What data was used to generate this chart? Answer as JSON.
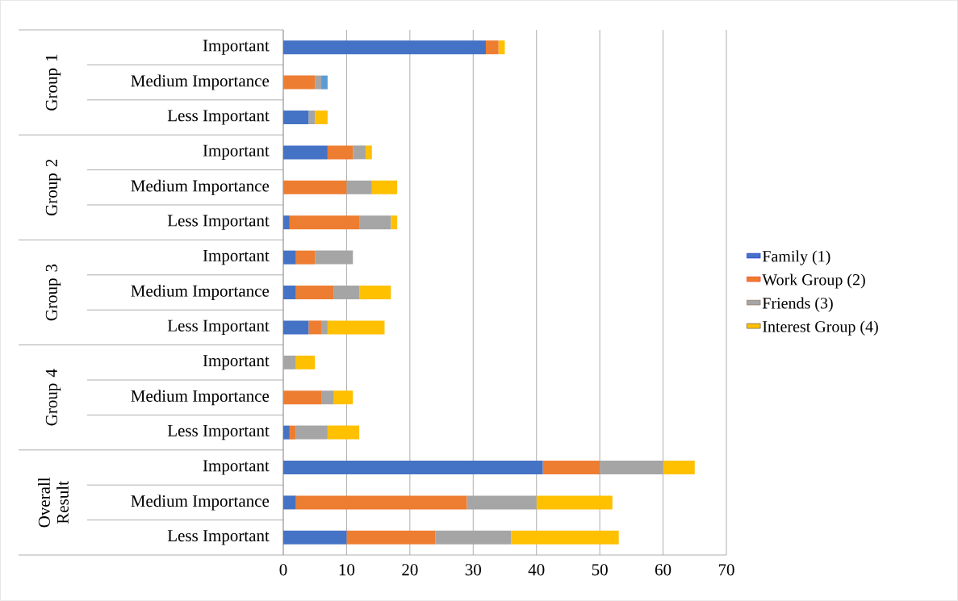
{
  "chart_data": {
    "type": "bar",
    "orientation": "horizontal",
    "stacked": true,
    "categories": [
      "Important",
      "Medium Importance",
      "Less Important",
      "Important",
      "Medium Importance",
      "Less Important",
      "Important",
      "Medium Importance",
      "Less Important",
      "Important",
      "Medium Importance",
      "Less Important",
      "Important",
      "Medium Importance",
      "Less Important"
    ],
    "series": [
      {
        "name": "Family (1)",
        "color": "#4472c4",
        "values": [
          32,
          0,
          4,
          7,
          0,
          1,
          2,
          2,
          4,
          0,
          0,
          1,
          41,
          2,
          10
        ]
      },
      {
        "name": "Work Group (2)",
        "color": "#ed7d31",
        "values": [
          2,
          5,
          0,
          4,
          10,
          11,
          3,
          6,
          2,
          0,
          6,
          1,
          9,
          27,
          14
        ]
      },
      {
        "name": "Friends (3)",
        "color": "#a5a5a5",
        "values": [
          0,
          1,
          1,
          2,
          4,
          5,
          6,
          4,
          1,
          2,
          2,
          5,
          10,
          11,
          12
        ]
      },
      {
        "name": "Interest Group (4)",
        "color": "#ffc000",
        "values": [
          1,
          0,
          2,
          1,
          4,
          1,
          0,
          5,
          9,
          3,
          3,
          5,
          5,
          12,
          17
        ]
      },
      {
        "color": "#5b9bd5",
        "values": [
          0,
          1,
          0,
          0,
          0,
          0,
          0,
          0,
          0,
          0,
          0,
          0,
          0,
          0,
          0
        ]
      }
    ],
    "annotations": [
      "Group 1",
      "Group 2",
      "Group 3",
      "Group 4",
      "Overall Result"
    ],
    "xlim": [
      0,
      70
    ],
    "xticks": [
      0,
      10,
      20,
      30,
      40,
      50,
      60,
      70
    ],
    "grid": "x",
    "legend": "right"
  }
}
